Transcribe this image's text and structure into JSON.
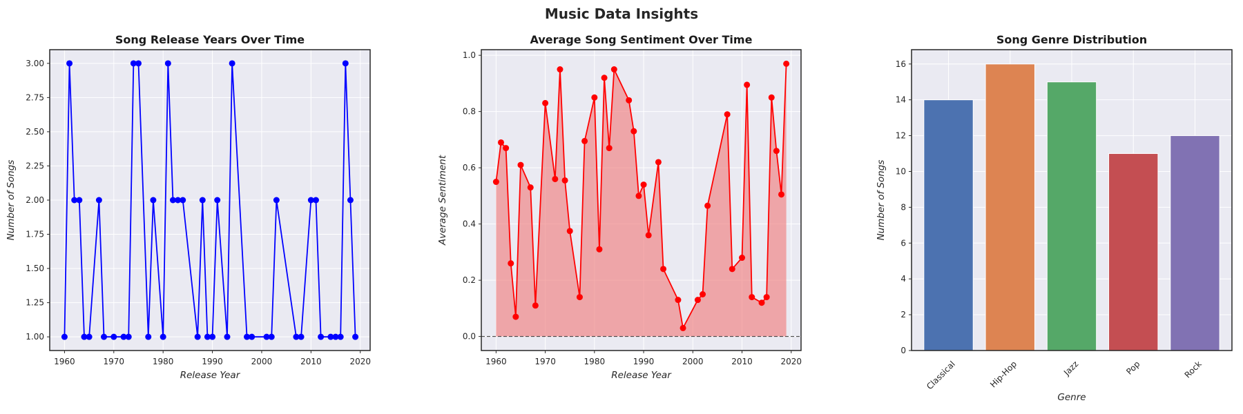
{
  "figure": {
    "title": "Music Data Insights"
  },
  "colors": {
    "background": "#eaeaf2",
    "grid": "#ffffff",
    "line1": "#0000ff",
    "line2": "#ff0000",
    "area2": "#f08080",
    "zero_line": "#333333"
  },
  "chart_data": [
    {
      "type": "line",
      "title": "Song Release Years Over Time",
      "xlabel": "Release Year",
      "ylabel": "Number of Songs",
      "xlim": [
        1957,
        2022
      ],
      "ylim": [
        0.9,
        3.1
      ],
      "xticks": [
        1960,
        1970,
        1980,
        1990,
        2000,
        2010,
        2020
      ],
      "yticks": [
        1.0,
        1.25,
        1.5,
        1.75,
        2.0,
        2.25,
        2.5,
        2.75,
        3.0
      ],
      "ytick_labels": [
        "1.00",
        "1.25",
        "1.50",
        "1.75",
        "2.00",
        "2.25",
        "2.50",
        "2.75",
        "3.00"
      ],
      "grid": true,
      "marker": "circle",
      "x": [
        1960,
        1961,
        1962,
        1963,
        1964,
        1965,
        1967,
        1968,
        1970,
        1972,
        1973,
        1974,
        1975,
        1977,
        1978,
        1980,
        1981,
        1982,
        1983,
        1984,
        1987,
        1988,
        1989,
        1990,
        1991,
        1993,
        1994,
        1997,
        1998,
        2001,
        2002,
        2003,
        2007,
        2008,
        2010,
        2011,
        2012,
        2014,
        2015,
        2016,
        2017,
        2018,
        2019
      ],
      "y": [
        1,
        3,
        2,
        2,
        1,
        1,
        2,
        1,
        1,
        1,
        1,
        3,
        3,
        1,
        2,
        1,
        3,
        2,
        2,
        2,
        1,
        2,
        1,
        1,
        2,
        1,
        3,
        1,
        1,
        1,
        1,
        2,
        1,
        1,
        2,
        2,
        1,
        1,
        1,
        1,
        3,
        2,
        1
      ]
    },
    {
      "type": "area",
      "title": "Average Song Sentiment Over Time",
      "xlabel": "Release Year",
      "ylabel": "Average Sentiment",
      "xlim": [
        1957,
        2022
      ],
      "ylim": [
        -0.05,
        1.02
      ],
      "xticks": [
        1960,
        1970,
        1980,
        1990,
        2000,
        2010,
        2020
      ],
      "yticks": [
        0.0,
        0.2,
        0.4,
        0.6,
        0.8,
        1.0
      ],
      "ytick_labels": [
        "0.0",
        "0.2",
        "0.4",
        "0.6",
        "0.8",
        "1.0"
      ],
      "grid": true,
      "marker": "circle",
      "reference_line": 0,
      "x": [
        1960,
        1961,
        1962,
        1963,
        1964,
        1965,
        1967,
        1968,
        1970,
        1972,
        1973,
        1974,
        1975,
        1977,
        1978,
        1980,
        1981,
        1982,
        1983,
        1984,
        1987,
        1988,
        1989,
        1990,
        1991,
        1993,
        1994,
        1997,
        1998,
        2001,
        2002,
        2003,
        2007,
        2008,
        2010,
        2011,
        2012,
        2014,
        2015,
        2016,
        2017,
        2018,
        2019
      ],
      "y": [
        0.55,
        0.69,
        0.67,
        0.26,
        0.07,
        0.61,
        0.53,
        0.11,
        0.83,
        0.56,
        0.95,
        0.555,
        0.375,
        0.14,
        0.695,
        0.85,
        0.31,
        0.92,
        0.67,
        0.95,
        0.84,
        0.73,
        0.5,
        0.54,
        0.36,
        0.62,
        0.24,
        0.13,
        0.03,
        0.13,
        0.15,
        0.465,
        0.79,
        0.24,
        0.28,
        0.895,
        0.14,
        0.12,
        0.14,
        0.85,
        0.66,
        0.505,
        0.97
      ]
    },
    {
      "type": "bar",
      "title": "Song Genre Distribution",
      "xlabel": "Genre",
      "ylabel": "Number of Songs",
      "ylim": [
        0,
        16.8
      ],
      "yticks": [
        0,
        2,
        4,
        6,
        8,
        10,
        12,
        14,
        16
      ],
      "ytick_labels": [
        "0",
        "2",
        "4",
        "6",
        "8",
        "10",
        "12",
        "14",
        "16"
      ],
      "grid": true,
      "categories": [
        "Classical",
        "Hip-Hop",
        "Jazz",
        "Pop",
        "Rock"
      ],
      "values": [
        14,
        16,
        15,
        11,
        12
      ],
      "bar_colors": [
        "#4c72b0",
        "#dd8452",
        "#55a868",
        "#c44e52",
        "#8172b3"
      ]
    }
  ]
}
